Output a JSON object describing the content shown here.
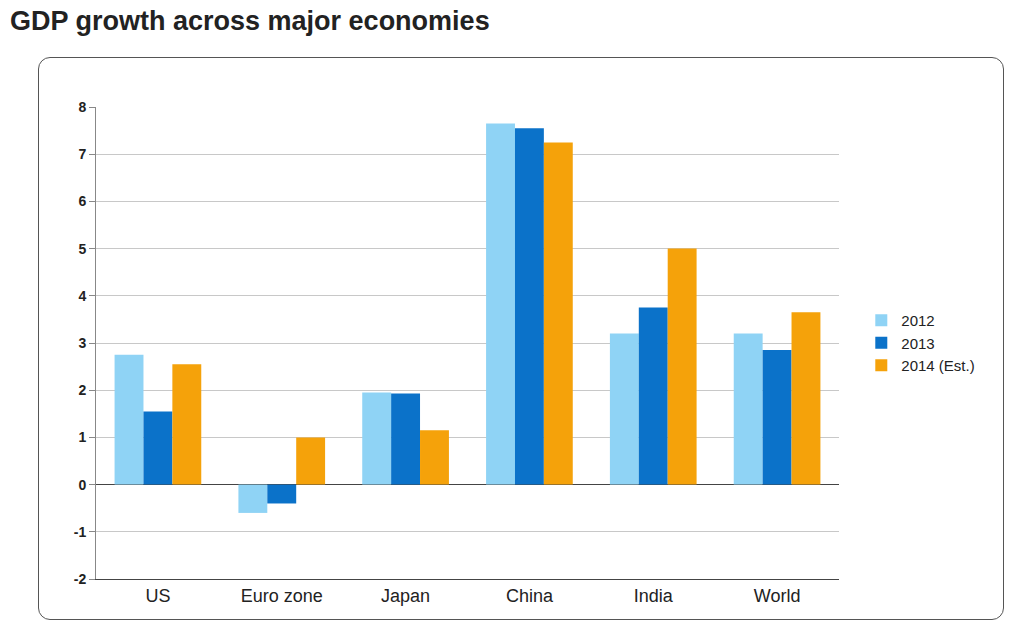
{
  "chart_data": {
    "type": "bar",
    "title": "GDP growth across major economies",
    "categories": [
      "US",
      "Euro zone",
      "Japan",
      "China",
      "India",
      "World"
    ],
    "series": [
      {
        "name": "2012",
        "color": "#8fd3f5",
        "values": [
          2.75,
          -0.6,
          1.95,
          7.65,
          3.2,
          3.2
        ]
      },
      {
        "name": "2013",
        "color": "#0b72c9",
        "values": [
          1.55,
          -0.4,
          1.93,
          7.55,
          3.75,
          2.85
        ]
      },
      {
        "name": "2014 (Est.)",
        "color": "#f5a20a",
        "values": [
          2.55,
          1.0,
          1.15,
          7.25,
          5.0,
          3.65
        ]
      }
    ],
    "ylim": [
      -2,
      8
    ],
    "yticks": [
      -2,
      -1,
      0,
      1,
      2,
      3,
      4,
      5,
      6,
      7,
      8
    ],
    "grid": true,
    "legend": "right"
  }
}
